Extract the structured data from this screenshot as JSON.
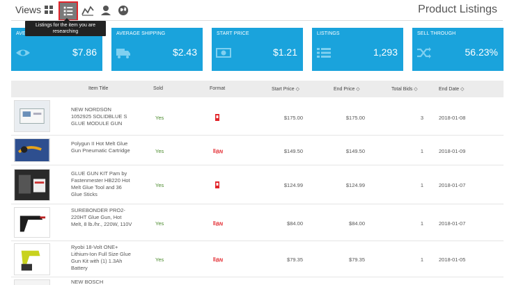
{
  "toolbar": {
    "views_label": "Views",
    "icons": [
      "grid-icon",
      "list-icon",
      "chart-icon",
      "user-icon",
      "globe-icon"
    ],
    "active_icon": "list-icon",
    "tooltip": "Listings for the item you are researching"
  },
  "page_title": "Product Listings",
  "stats": [
    {
      "label": "AVERAGE PRICE",
      "value": "$7.86",
      "icon": "eye-icon"
    },
    {
      "label": "AVERAGE SHIPPING",
      "value": "$2.43",
      "icon": "truck-icon"
    },
    {
      "label": "START PRICE",
      "value": "$1.21",
      "icon": "money-icon"
    },
    {
      "label": "LISTINGS",
      "value": "1,293",
      "icon": "list-icon"
    },
    {
      "label": "SELL THROUGH",
      "value": "56.23%",
      "icon": "shuffle-icon"
    }
  ],
  "colors": {
    "accent": "#1aa3dc",
    "sold": "#4a8a2c",
    "active_border": "#e2242a"
  },
  "table": {
    "headers": {
      "item_title": "Item Title",
      "sold": "Sold",
      "format": "Format",
      "start_price": "Start Price",
      "end_price": "End Price",
      "total_bids": "Total Bids",
      "end_date": "End Date"
    },
    "rows": [
      {
        "title": "NEW NORDSON 1052925 SOLIDBLUE S GLUE MODULE GUN",
        "sold": "Yes",
        "format": "auction-icon",
        "start_price": "$175.00",
        "end_price": "$175.00",
        "total_bids": "3",
        "end_date": "2018-01-08"
      },
      {
        "title": "Polygun II Hot Melt Glue Gun Pneumatic Cartridge",
        "sold": "Yes",
        "format": "buy-it-now-icon",
        "start_price": "$149.50",
        "end_price": "$149.50",
        "total_bids": "1",
        "end_date": "2018-01-09"
      },
      {
        "title": "GLUE GUN KIT Pam by Fastenmester HB220 Hot Melt Glue Tool and 36 Glue Sticks",
        "sold": "Yes",
        "format": "auction-icon",
        "start_price": "$124.99",
        "end_price": "$124.99",
        "total_bids": "1",
        "end_date": "2018-01-07"
      },
      {
        "title": "SUREBONDER PRO2-220HT Glue Gun, Hot Melt, 8 lb./hr., 220W, 110V",
        "sold": "Yes",
        "format": "buy-it-now-icon",
        "start_price": "$84.00",
        "end_price": "$84.00",
        "total_bids": "1",
        "end_date": "2018-01-07"
      },
      {
        "title": "Ryobi 18-Volt ONE+ Lithium-Ion Full Size Glue Gun Kit with (1) 1.3Ah Battery",
        "sold": "Yes",
        "format": "buy-it-now-icon",
        "start_price": "$79.35",
        "end_price": "$79.35",
        "total_bids": "1",
        "end_date": "2018-01-05"
      },
      {
        "title": "NEW BOSCH",
        "sold": "",
        "format": "",
        "start_price": "",
        "end_price": "",
        "total_bids": "",
        "end_date": ""
      }
    ]
  }
}
